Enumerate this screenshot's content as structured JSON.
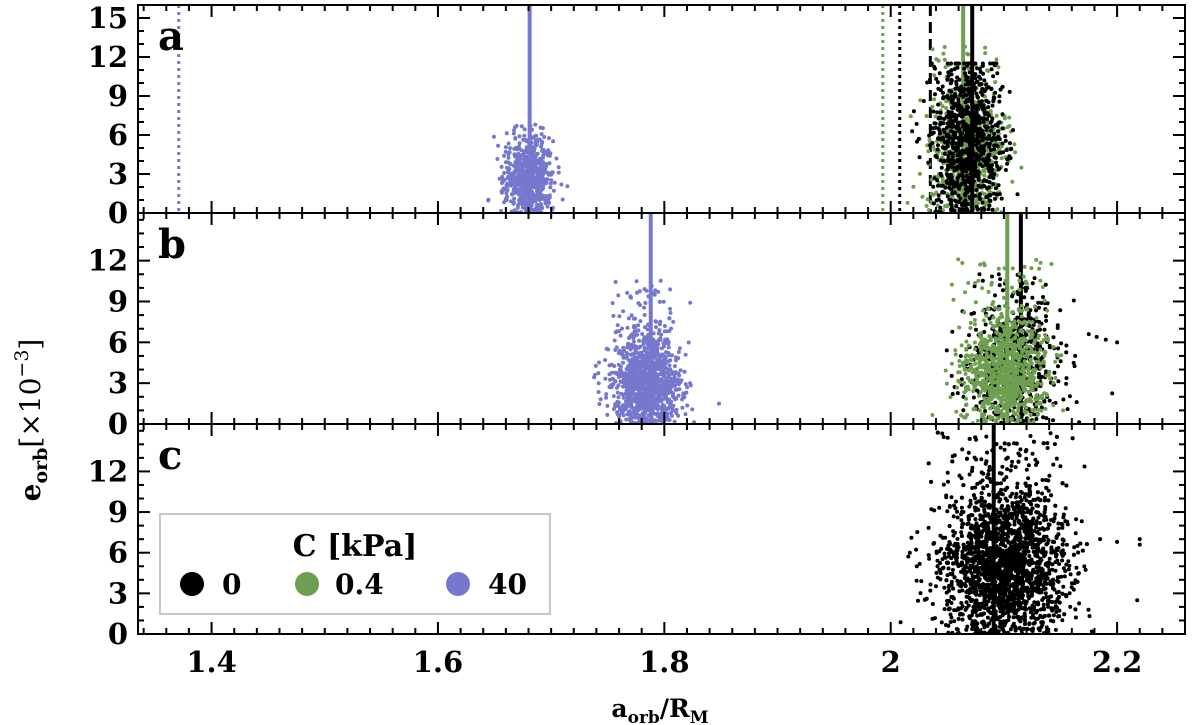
{
  "colors": {
    "c0": "#000000",
    "c04": "#6e9e4f",
    "c40": "#7578cc",
    "axis": "#000000",
    "legend_border": "#c8c8c8"
  },
  "chart_data": {
    "type": "scatter",
    "title": "",
    "xlabel": {
      "main": "a",
      "main_sub": "orb",
      "sep": "/R",
      "sep_sub": "M"
    },
    "ylabel": {
      "main": "e",
      "main_sub": "orb",
      "factor_prefix": "[×10",
      "factor_exp": "−3",
      "factor_suffix": "]"
    },
    "xlim": [
      1.335,
      2.26
    ],
    "x_ticks": [
      1.4,
      1.6,
      1.8,
      2.0,
      2.2
    ],
    "x_tick_labels": [
      "1.4",
      "1.6",
      "1.8",
      "2",
      "2.2"
    ],
    "legend": {
      "title": "C [kPa]",
      "placement": "bottom-left of panel c",
      "entries": [
        {
          "label": "0",
          "color_key": "c0"
        },
        {
          "label": "0.4",
          "color_key": "c04"
        },
        {
          "label": "40",
          "color_key": "c40"
        }
      ]
    },
    "panels": [
      {
        "label": "a",
        "ylim": [
          0,
          16
        ],
        "y_ticks": [
          0,
          3,
          6,
          9,
          12,
          15
        ],
        "y_tick_labels": [
          "0",
          "3",
          "6",
          "9",
          "12",
          "15"
        ],
        "vlines": [
          {
            "x": 1.371,
            "style": "dotted",
            "color_key": "c40"
          },
          {
            "x": 1.993,
            "style": "dotted",
            "color_key": "c04"
          },
          {
            "x": 2.008,
            "style": "dotted",
            "color_key": "c0"
          },
          {
            "x": 2.035,
            "style": "dashed",
            "color_key": "c0"
          }
        ],
        "series": [
          {
            "name": "40",
            "color_key": "c40",
            "x_center": 1.68,
            "x_spread": 0.021,
            "e_max": 6.8,
            "e_mode": 2.6,
            "n": 650,
            "peak_x": 1.681,
            "peak_height": 16
          },
          {
            "name": "0.4",
            "color_key": "c04",
            "x_center": 2.068,
            "x_spread": 0.032,
            "e_max": 13.0,
            "e_mode": 4.5,
            "n": 650,
            "peak_x": 2.064,
            "peak_height": 16
          },
          {
            "name": "0",
            "color_key": "c0",
            "x_center": 2.068,
            "x_spread": 0.032,
            "e_max": 11.5,
            "e_mode": 5.5,
            "n": 850,
            "peak_x": 2.072,
            "peak_height": 16
          }
        ]
      },
      {
        "label": "b",
        "ylim": [
          0,
          15.5
        ],
        "y_ticks": [
          0,
          3,
          6,
          9,
          12
        ],
        "y_tick_labels": [
          "0",
          "3",
          "6",
          "9",
          "12"
        ],
        "vlines": [],
        "series": [
          {
            "name": "0",
            "color_key": "c0",
            "x_center": 2.11,
            "x_spread": 0.04,
            "e_max": 11.0,
            "e_mode": 4.5,
            "n": 550,
            "peak_x": 2.115,
            "peak_height": 15.5,
            "outliers": [
              [
                2.175,
                6.6
              ],
              [
                2.182,
                6.4
              ],
              [
                2.19,
                6.2
              ],
              [
                2.2,
                6.0
              ],
              [
                2.163,
                5.0
              ]
            ]
          },
          {
            "name": "0.4",
            "color_key": "c04",
            "x_center": 2.1,
            "x_spread": 0.038,
            "e_max": 12.2,
            "e_mode": 3.8,
            "n": 900,
            "peak_x": 2.103,
            "peak_height": 15.5
          },
          {
            "name": "40",
            "color_key": "c40",
            "x_center": 1.784,
            "x_spread": 0.03,
            "e_max": 10.8,
            "e_mode": 3.0,
            "n": 1100,
            "peak_x": 1.788,
            "peak_height": 15.5
          }
        ]
      },
      {
        "label": "c",
        "ylim": [
          0,
          15.5
        ],
        "y_ticks": [
          0,
          3,
          6,
          9,
          12
        ],
        "y_tick_labels": [
          "0",
          "3",
          "6",
          "9",
          "12"
        ],
        "vlines": [],
        "series": [
          {
            "name": "0",
            "color_key": "c0",
            "x_center": 2.1,
            "x_spread": 0.055,
            "e_max": 15.0,
            "e_mode": 5.0,
            "n": 2600,
            "peak_x": 2.091,
            "peak_height": 15.5,
            "outliers": [
              [
                2.185,
                7.0
              ],
              [
                2.2,
                6.8
              ],
              [
                2.22,
                7.0
              ],
              [
                2.22,
                6.6
              ],
              [
                2.165,
                6.5
              ]
            ]
          }
        ]
      }
    ]
  }
}
